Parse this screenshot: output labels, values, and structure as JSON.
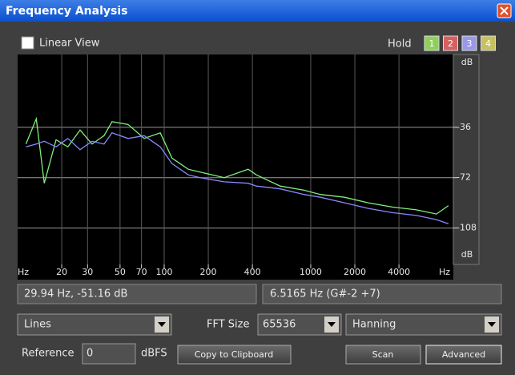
{
  "window": {
    "title": "Frequency Analysis"
  },
  "toolbar": {
    "linear_view": "Linear View",
    "hold": "Hold",
    "hold_buttons": [
      "1",
      "2",
      "3",
      "4"
    ]
  },
  "plot": {
    "type": "line",
    "x_unit": "Hz",
    "y_unit": "dB",
    "log_x": true,
    "grid": true,
    "xlim": [
      10,
      9400
    ],
    "ylim": [
      -134,
      16
    ],
    "xticks": [
      20,
      30,
      50,
      70,
      100,
      200,
      400,
      1000,
      2000,
      4000
    ],
    "yticks": [
      -36,
      -72,
      -108
    ],
    "x": [
      11.4,
      13.4,
      15.2,
      18.3,
      22,
      26.7,
      32.2,
      38.9,
      44.1,
      56.7,
      73,
      94,
      113,
      146,
      176,
      257,
      374,
      425,
      619,
      901,
      1166,
      1700,
      2470,
      3600,
      5270,
      7210,
      8700
    ],
    "series": [
      {
        "color": "#7ff07a",
        "values": [
          -48,
          -30,
          -76,
          -45,
          -50,
          -38,
          -48,
          -42,
          -32,
          -34,
          -44,
          -40,
          -58,
          -66,
          -68,
          -72,
          -66,
          -70,
          -78,
          -81,
          -84,
          -86,
          -90,
          -93,
          -95,
          -98,
          -92
        ]
      },
      {
        "color": "#8a88ff",
        "values": [
          -50,
          -48,
          -46,
          -50,
          -44,
          -52,
          -46,
          -48,
          -40,
          -44,
          -42,
          -50,
          -62,
          -70,
          -72,
          -75,
          -76,
          -78,
          -80,
          -84,
          -86,
          -90,
          -94,
          -97,
          -99,
          -102,
          -105
        ]
      }
    ]
  },
  "status": {
    "cursor": "29.94 Hz, -51.16 dB",
    "peak": "6.5165 Hz (G#-2 +7)"
  },
  "controls": {
    "algorithm": "Lines",
    "fft_label": "FFT Size",
    "fft_size": "65536",
    "window_func": "Hanning",
    "reference_label": "Reference",
    "reference_value": "0",
    "dbfs": "dBFS",
    "copy": "Copy to Clipboard",
    "scan": "Scan",
    "advanced": "Advanced"
  }
}
